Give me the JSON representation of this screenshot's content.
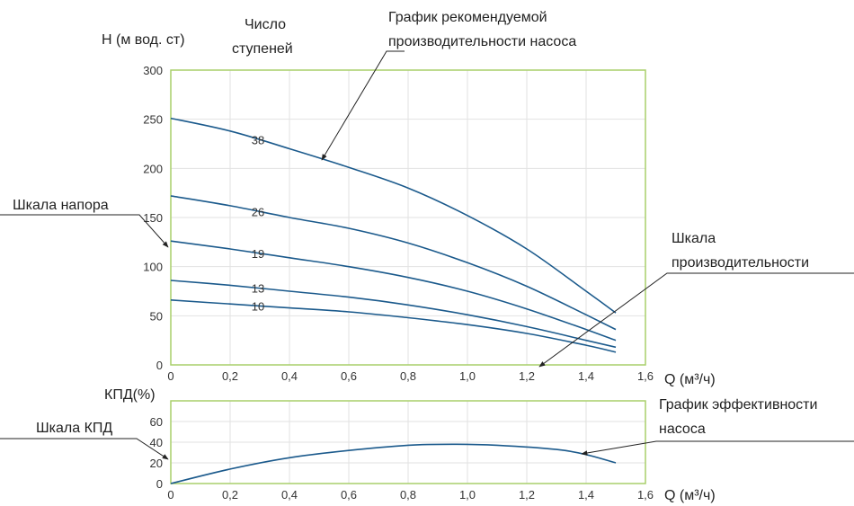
{
  "chart_data": [
    {
      "type": "line",
      "name_role": "head-chart",
      "ylabel": "Н (м вод. ст)",
      "stages_label": [
        "Число",
        "ступеней"
      ],
      "xlabel": "Q (м³/ч)",
      "xlim": [
        0,
        1.6
      ],
      "ylim": [
        0,
        300
      ],
      "x_ticks": [
        "0",
        "0,2",
        "0,4",
        "0,6",
        "0,8",
        "1,0",
        "1,2",
        "1,4",
        "1,6"
      ],
      "y_ticks": [
        "0",
        "50",
        "100",
        "150",
        "200",
        "250",
        "300"
      ],
      "grid": true,
      "series": [
        {
          "name": "38",
          "points": [
            [
              0,
              251
            ],
            [
              0.2,
              238
            ],
            [
              0.4,
              220
            ],
            [
              0.6,
              201
            ],
            [
              0.8,
              180
            ],
            [
              1.0,
              152
            ],
            [
              1.2,
              118
            ],
            [
              1.4,
              75
            ],
            [
              1.5,
              53
            ]
          ]
        },
        {
          "name": "26",
          "points": [
            [
              0,
              172
            ],
            [
              0.2,
              162
            ],
            [
              0.4,
              150
            ],
            [
              0.6,
              139
            ],
            [
              0.8,
              124
            ],
            [
              1.0,
              104
            ],
            [
              1.2,
              80
            ],
            [
              1.4,
              51
            ],
            [
              1.5,
              36
            ]
          ]
        },
        {
          "name": "19",
          "points": [
            [
              0,
              126
            ],
            [
              0.2,
              118
            ],
            [
              0.4,
              109
            ],
            [
              0.6,
              100
            ],
            [
              0.8,
              89
            ],
            [
              1.0,
              75
            ],
            [
              1.2,
              57
            ],
            [
              1.4,
              36
            ],
            [
              1.5,
              25
            ]
          ]
        },
        {
          "name": "13",
          "points": [
            [
              0,
              86
            ],
            [
              0.2,
              81
            ],
            [
              0.4,
              75
            ],
            [
              0.6,
              69
            ],
            [
              0.8,
              61
            ],
            [
              1.0,
              51
            ],
            [
              1.2,
              39
            ],
            [
              1.4,
              25
            ],
            [
              1.5,
              18
            ]
          ]
        },
        {
          "name": "10",
          "points": [
            [
              0,
              66
            ],
            [
              0.2,
              62
            ],
            [
              0.4,
              58
            ],
            [
              0.6,
              54
            ],
            [
              0.8,
              48
            ],
            [
              1.0,
              41
            ],
            [
              1.2,
              32
            ],
            [
              1.4,
              20
            ],
            [
              1.5,
              13
            ]
          ]
        }
      ]
    },
    {
      "type": "line",
      "name_role": "efficiency-chart",
      "ylabel": "КПД(%)",
      "xlabel": "Q (м³/ч)",
      "xlim": [
        0,
        1.6
      ],
      "ylim": [
        0,
        80
      ],
      "x_ticks": [
        "0",
        "0,2",
        "0,4",
        "0,6",
        "0,8",
        "1,0",
        "1,2",
        "1,4",
        "1,6"
      ],
      "y_ticks": [
        "0",
        "20",
        "40",
        "60"
      ],
      "grid": true,
      "series": [
        {
          "name": "",
          "points": [
            [
              0,
              0
            ],
            [
              0.2,
              14
            ],
            [
              0.4,
              25
            ],
            [
              0.6,
              32
            ],
            [
              0.8,
              37
            ],
            [
              0.95,
              38
            ],
            [
              1.1,
              37
            ],
            [
              1.3,
              33
            ],
            [
              1.4,
              28
            ],
            [
              1.5,
              20
            ]
          ]
        }
      ]
    }
  ],
  "annotations": {
    "recommended": [
      "График рекомендуемой",
      "производительности насоса"
    ],
    "head_scale": "Шкала напора",
    "flow_scale": [
      "Шкала",
      "производительности"
    ],
    "eff_scale": "Шкала КПД",
    "efficiency_graph": [
      "График эффективности",
      "насоса"
    ]
  },
  "colors": {
    "curve": "#1b5a8c",
    "frame": "#a9cf6a",
    "grid": "#e2e2e2"
  }
}
